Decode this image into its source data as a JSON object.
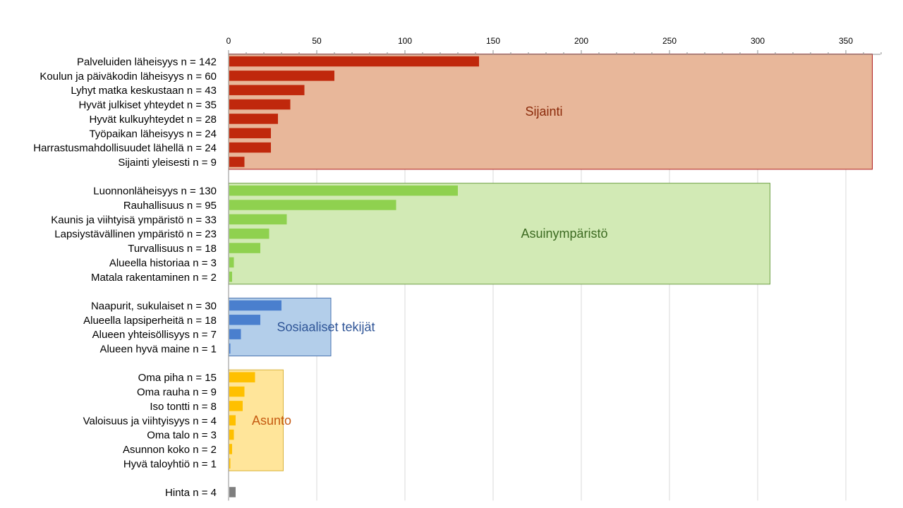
{
  "chart_data": {
    "type": "bar",
    "orientation": "horizontal",
    "xlim": [
      0,
      370
    ],
    "x_ticks": [
      0,
      50,
      100,
      150,
      200,
      250,
      300,
      350
    ],
    "x_axis_position": "top",
    "grid": true,
    "groups": [
      {
        "name": "Sijainti",
        "color": "#C0280C",
        "box_fill": "#E8B79A",
        "box_stroke": "#B01B1B",
        "label_color": "#8B2A0A",
        "box_max": 365,
        "items": [
          {
            "label": "Palveluiden läheisyys n = 142",
            "value": 142
          },
          {
            "label": "Koulun ja päiväkodin läheisyys n = 60",
            "value": 60
          },
          {
            "label": "Lyhyt matka keskustaan n = 43",
            "value": 43
          },
          {
            "label": "Hyvät julkiset yhteydet n = 35",
            "value": 35
          },
          {
            "label": "Hyvät kulkuyhteydet n = 28",
            "value": 28
          },
          {
            "label": "Työpaikan läheisyys  n = 24",
            "value": 24
          },
          {
            "label": "Harrastusmahdollisuudet lähellä  n = 24",
            "value": 24
          },
          {
            "label": "Sijainti yleisesti  n = 9",
            "value": 9
          }
        ]
      },
      {
        "name": "Asuinympäristö",
        "color": "#8FD14F",
        "box_fill": "#D2EAB5",
        "box_stroke": "#6FA046",
        "label_color": "#3D6B22",
        "box_max": 307,
        "items": [
          {
            "label": "Luonnonläheisyys  n = 130",
            "value": 130
          },
          {
            "label": "Rauhallisuus  n = 95",
            "value": 95
          },
          {
            "label": "Kaunis ja viihtyisä ympäristö  n = 33",
            "value": 33
          },
          {
            "label": "Lapsiystävällinen ympäristö  n = 23",
            "value": 23
          },
          {
            "label": "Turvallisuus  n = 18",
            "value": 18
          },
          {
            "label": "Alueella historiaa  n = 3",
            "value": 3
          },
          {
            "label": "Matala rakentaminen  n = 2",
            "value": 2
          }
        ]
      },
      {
        "name": "Sosiaaliset tekijät",
        "color": "#4A7FCE",
        "box_fill": "#B3CEEA",
        "box_stroke": "#4A74B0",
        "label_color": "#2F5597",
        "box_max": 58,
        "items": [
          {
            "label": "Naapurit, sukulaiset  n = 30",
            "value": 30
          },
          {
            "label": "Alueella lapsiperheitä  n = 18",
            "value": 18
          },
          {
            "label": "Alueen yhteisöllisyys  n = 7",
            "value": 7
          },
          {
            "label": "Alueen hyvä maine  n = 1",
            "value": 1
          }
        ]
      },
      {
        "name": "Asunto",
        "color": "#FFC000",
        "box_fill": "#FFE59A",
        "box_stroke": "#D9B43C",
        "label_color": "#C55A11",
        "box_max": 31,
        "items": [
          {
            "label": "Oma piha  n = 15",
            "value": 15
          },
          {
            "label": "Oma rauha  n = 9",
            "value": 9
          },
          {
            "label": "Iso tontti  n = 8",
            "value": 8
          },
          {
            "label": "Valoisuus ja viihtyisyys  n = 4",
            "value": 4
          },
          {
            "label": "Oma talo  n = 3",
            "value": 3
          },
          {
            "label": "Asunnon koko  n = 2",
            "value": 2
          },
          {
            "label": "Hyvä taloyhtiö  n = 1",
            "value": 1
          }
        ]
      },
      {
        "name": "",
        "color": "#7F7F7F",
        "items": [
          {
            "label": "Hinta  n = 4",
            "value": 4
          }
        ]
      }
    ]
  }
}
